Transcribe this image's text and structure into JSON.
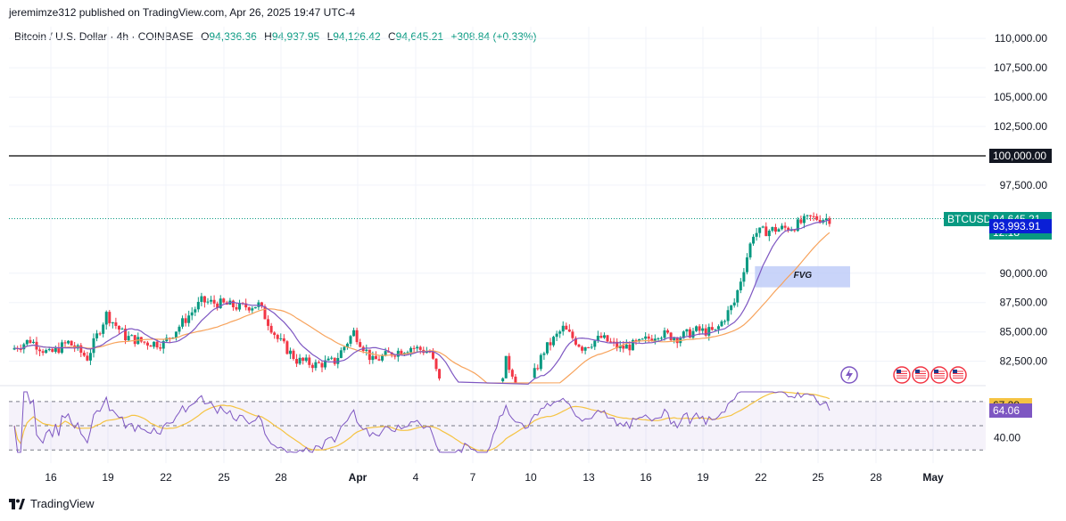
{
  "header": {
    "publish_line": "jeremimze312 published on TradingView.com, Apr 26, 2025 19:47 UTC-4"
  },
  "legend": {
    "symbol": "Bitcoin / U.S. Dollar · 4h · COINBASE",
    "o_label": "O",
    "o_value": "94,336.36",
    "h_label": "H",
    "h_value": "94,937.95",
    "l_label": "L",
    "l_value": "94,126.42",
    "c_label": "C",
    "c_value": "94,645.21",
    "change": "+308.84 (+0.33%)"
  },
  "colors": {
    "up": "#089981",
    "down": "#f23645",
    "ma_fast": "#7e57c2",
    "ma_slow": "#f7a35c",
    "rsi_line": "#7e57c2",
    "rsi_ma": "#f5c342",
    "fvg": "#bbc9f7",
    "level_line": "#000000",
    "btc_tag": "#089981",
    "ma_tag": "#0a1fd6"
  },
  "badges": {
    "symbol_tag": "BTCUSD",
    "last_price": "94,645.21",
    "countdown": "12:18",
    "ma_value": "93,993.91",
    "level_value": "100,000.00",
    "rsi_ma_value": "67.29",
    "rsi_value": "64.06"
  },
  "annotations": {
    "fvg_label": "FVG",
    "fvg_zone": {
      "from": "Apr 22",
      "to": "Apr 27",
      "low": 88800,
      "high": 90600
    },
    "horizontal_level": 100000
  },
  "footer": {
    "brand": "TradingView"
  },
  "chart_data": {
    "type": "candlestick",
    "title": "Bitcoin / U.S. Dollar · 4h · COINBASE",
    "price_axis": {
      "ticks": [
        "110,000.00",
        "107,500.00",
        "105,000.00",
        "102,500.00",
        "97,500.00",
        "90,000.00",
        "87,500.00",
        "85,000.00",
        "82,500.00"
      ],
      "tick_values": [
        110000,
        107500,
        105000,
        102500,
        97500,
        90000,
        87500,
        85000,
        82500
      ],
      "range": [
        80500,
        111000
      ]
    },
    "rsi_axis": {
      "ticks": [
        "40.00"
      ],
      "tick_values": [
        40
      ],
      "bands": [
        70,
        50,
        30
      ],
      "range": [
        25,
        78
      ]
    },
    "time_axis": {
      "labels": [
        "16",
        "19",
        "22",
        "25",
        "28",
        "Apr",
        "4",
        "7",
        "10",
        "13",
        "16",
        "19",
        "22",
        "25",
        "28",
        "May"
      ]
    },
    "price_series": [
      [
        "Mar 14",
        83500
      ],
      [
        "Mar 15",
        84300
      ],
      [
        "Mar 16",
        83100
      ],
      [
        "Mar 17",
        84100
      ],
      [
        "Mar 18",
        82800
      ],
      [
        "Mar 19",
        86500
      ],
      [
        "Mar 20",
        84600
      ],
      [
        "Mar 21",
        84100
      ],
      [
        "Mar 22",
        84000
      ],
      [
        "Mar 23",
        85800
      ],
      [
        "Mar 24",
        87600
      ],
      [
        "Mar 25",
        87400
      ],
      [
        "Mar 26",
        87100
      ],
      [
        "Mar 27",
        87300
      ],
      [
        "Mar 28",
        84400
      ],
      [
        "Mar 29",
        82600
      ],
      [
        "Mar 30",
        82200
      ],
      [
        "Mar 31",
        82500
      ],
      [
        "Apr 1",
        85000
      ],
      [
        "Apr 2",
        82500
      ],
      [
        "Apr 3",
        83200
      ],
      [
        "Apr 4",
        83700
      ],
      [
        "Apr 5",
        83300
      ],
      [
        "Apr 6",
        78300
      ],
      [
        "Apr 7",
        79100
      ],
      [
        "Apr 8",
        76400
      ],
      [
        "Apr 9",
        82500
      ],
      [
        "Apr 10",
        79600
      ],
      [
        "Apr 11",
        83400
      ],
      [
        "Apr 12",
        85300
      ],
      [
        "Apr 13",
        83700
      ],
      [
        "Apr 14",
        84500
      ],
      [
        "Apr 15",
        83600
      ],
      [
        "Apr 16",
        84000
      ],
      [
        "Apr 17",
        84900
      ],
      [
        "Apr 18",
        84500
      ],
      [
        "Apr 19",
        85100
      ],
      [
        "Apr 20",
        85000
      ],
      [
        "Apr 21",
        87500
      ],
      [
        "Apr 22",
        93400
      ],
      [
        "Apr 23",
        93700
      ],
      [
        "Apr 24",
        93900
      ],
      [
        "Apr 25",
        94700
      ],
      [
        "Apr 26",
        94645
      ]
    ],
    "ma_fast_value": 93993.91,
    "rsi_value": 64.06,
    "rsi_ma_value": 67.29
  }
}
